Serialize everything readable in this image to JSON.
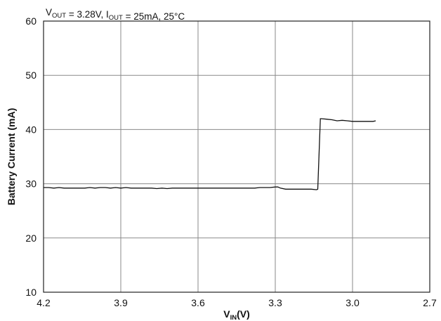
{
  "chart_data": {
    "type": "line",
    "title_parts": [
      {
        "text": "V",
        "sub": "OUT"
      },
      {
        "text": " = 3.28V, I",
        "sub": "OUT"
      },
      {
        "text": " = 25mA, 25°C",
        "sub": ""
      }
    ],
    "xlabel_main": "V",
    "xlabel_sub": "IN",
    "xlabel_tail": "(V)",
    "ylabel": "Battery Current (mA)",
    "xlim": [
      4.2,
      2.7
    ],
    "ylim": [
      10,
      60
    ],
    "x_reversed": true,
    "xticks": [
      4.2,
      3.9,
      3.6,
      3.3,
      3.0,
      2.7
    ],
    "xtick_labels": [
      "4.2",
      "3.9",
      "3.6",
      "3.3",
      "3.0",
      "2.7"
    ],
    "yticks": [
      10,
      20,
      30,
      40,
      50,
      60
    ],
    "ytick_labels": [
      "10",
      "20",
      "30",
      "40",
      "50",
      "60"
    ],
    "grid": true,
    "series": [
      {
        "x": [
          4.2,
          4.18,
          4.16,
          4.14,
          4.12,
          4.1,
          4.08,
          4.06,
          4.04,
          4.02,
          4.0,
          3.98,
          3.96,
          3.94,
          3.92,
          3.9,
          3.88,
          3.86,
          3.84,
          3.82,
          3.8,
          3.78,
          3.76,
          3.74,
          3.72,
          3.7,
          3.68,
          3.66,
          3.64,
          3.62,
          3.6,
          3.58,
          3.56,
          3.54,
          3.52,
          3.5,
          3.48,
          3.46,
          3.44,
          3.42,
          3.4,
          3.38,
          3.36,
          3.34,
          3.32,
          3.3,
          3.29,
          3.28,
          3.26,
          3.24,
          3.22,
          3.2,
          3.18,
          3.16,
          3.14,
          3.135,
          3.125,
          3.12,
          3.1,
          3.08,
          3.06,
          3.04,
          3.02,
          3.0,
          2.98,
          2.96,
          2.94,
          2.92,
          2.91
        ],
        "y": [
          29.3,
          29.3,
          29.2,
          29.3,
          29.2,
          29.2,
          29.2,
          29.2,
          29.2,
          29.3,
          29.2,
          29.3,
          29.3,
          29.2,
          29.3,
          29.2,
          29.3,
          29.2,
          29.2,
          29.2,
          29.2,
          29.2,
          29.1,
          29.2,
          29.1,
          29.2,
          29.2,
          29.2,
          29.2,
          29.2,
          29.2,
          29.2,
          29.2,
          29.2,
          29.2,
          29.2,
          29.2,
          29.2,
          29.2,
          29.2,
          29.2,
          29.2,
          29.3,
          29.3,
          29.3,
          29.4,
          29.4,
          29.2,
          29.0,
          29.0,
          29.0,
          29.0,
          29.0,
          29.0,
          28.9,
          29.0,
          42.0,
          42.0,
          41.9,
          41.8,
          41.6,
          41.7,
          41.6,
          41.5,
          41.5,
          41.5,
          41.5,
          41.5,
          41.6
        ]
      }
    ]
  }
}
